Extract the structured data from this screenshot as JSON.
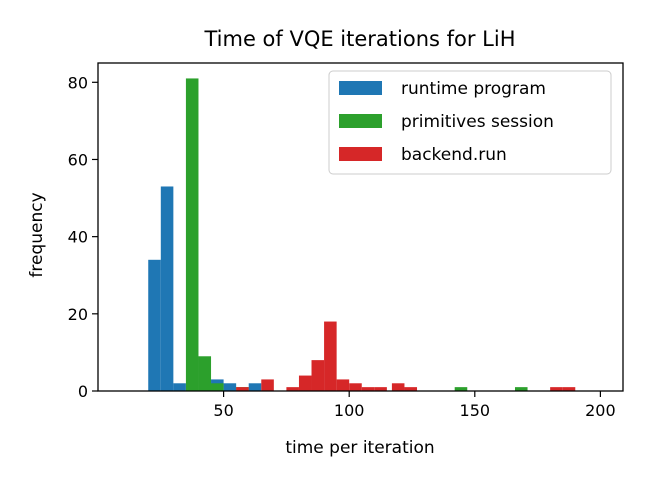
{
  "chart_data": {
    "type": "bar",
    "title": "Time of VQE iterations for LiH",
    "xlabel": "time per iteration",
    "ylabel": "frequency",
    "xlim": [
      0,
      209
    ],
    "ylim": [
      0,
      85
    ],
    "xticks": [
      50,
      100,
      150,
      200
    ],
    "yticks": [
      0,
      20,
      40,
      60,
      80
    ],
    "grid": false,
    "legend_position": "top-right",
    "series": [
      {
        "name": "runtime program",
        "color": "#1f77b4",
        "bins": [
          {
            "x0": 20.0,
            "x1": 25.0,
            "value": 34
          },
          {
            "x0": 25.0,
            "x1": 30.0,
            "value": 53
          },
          {
            "x0": 30.0,
            "x1": 35.0,
            "value": 2
          },
          {
            "x0": 45.0,
            "x1": 50.0,
            "value": 3
          },
          {
            "x0": 50.0,
            "x1": 55.0,
            "value": 2
          },
          {
            "x0": 60.0,
            "x1": 65.0,
            "value": 2
          }
        ]
      },
      {
        "name": "primitives session",
        "color": "#2ca02c",
        "bins": [
          {
            "x0": 35.0,
            "x1": 40.0,
            "value": 81
          },
          {
            "x0": 40.0,
            "x1": 45.0,
            "value": 9
          },
          {
            "x0": 45.0,
            "x1": 50.0,
            "value": 2
          },
          {
            "x0": 55.0,
            "x1": 60.0,
            "value": 1
          },
          {
            "x0": 142.0,
            "x1": 147.0,
            "value": 1
          },
          {
            "x0": 166.0,
            "x1": 171.0,
            "value": 1
          }
        ]
      },
      {
        "name": "backend.run",
        "color": "#d62728",
        "bins": [
          {
            "x0": 55.0,
            "x1": 60.0,
            "value": 1
          },
          {
            "x0": 65.0,
            "x1": 70.0,
            "value": 3
          },
          {
            "x0": 75.0,
            "x1": 80.0,
            "value": 1
          },
          {
            "x0": 80.0,
            "x1": 85.0,
            "value": 4
          },
          {
            "x0": 85.0,
            "x1": 90.0,
            "value": 8
          },
          {
            "x0": 90.0,
            "x1": 95.0,
            "value": 18
          },
          {
            "x0": 95.0,
            "x1": 100.0,
            "value": 3
          },
          {
            "x0": 100.0,
            "x1": 105.0,
            "value": 2
          },
          {
            "x0": 105.0,
            "x1": 110.0,
            "value": 1
          },
          {
            "x0": 110.0,
            "x1": 115.0,
            "value": 1
          },
          {
            "x0": 117.0,
            "x1": 122.0,
            "value": 2
          },
          {
            "x0": 122.0,
            "x1": 127.0,
            "value": 1
          },
          {
            "x0": 180.0,
            "x1": 185.0,
            "value": 1
          },
          {
            "x0": 185.0,
            "x1": 190.0,
            "value": 1
          }
        ]
      }
    ]
  }
}
